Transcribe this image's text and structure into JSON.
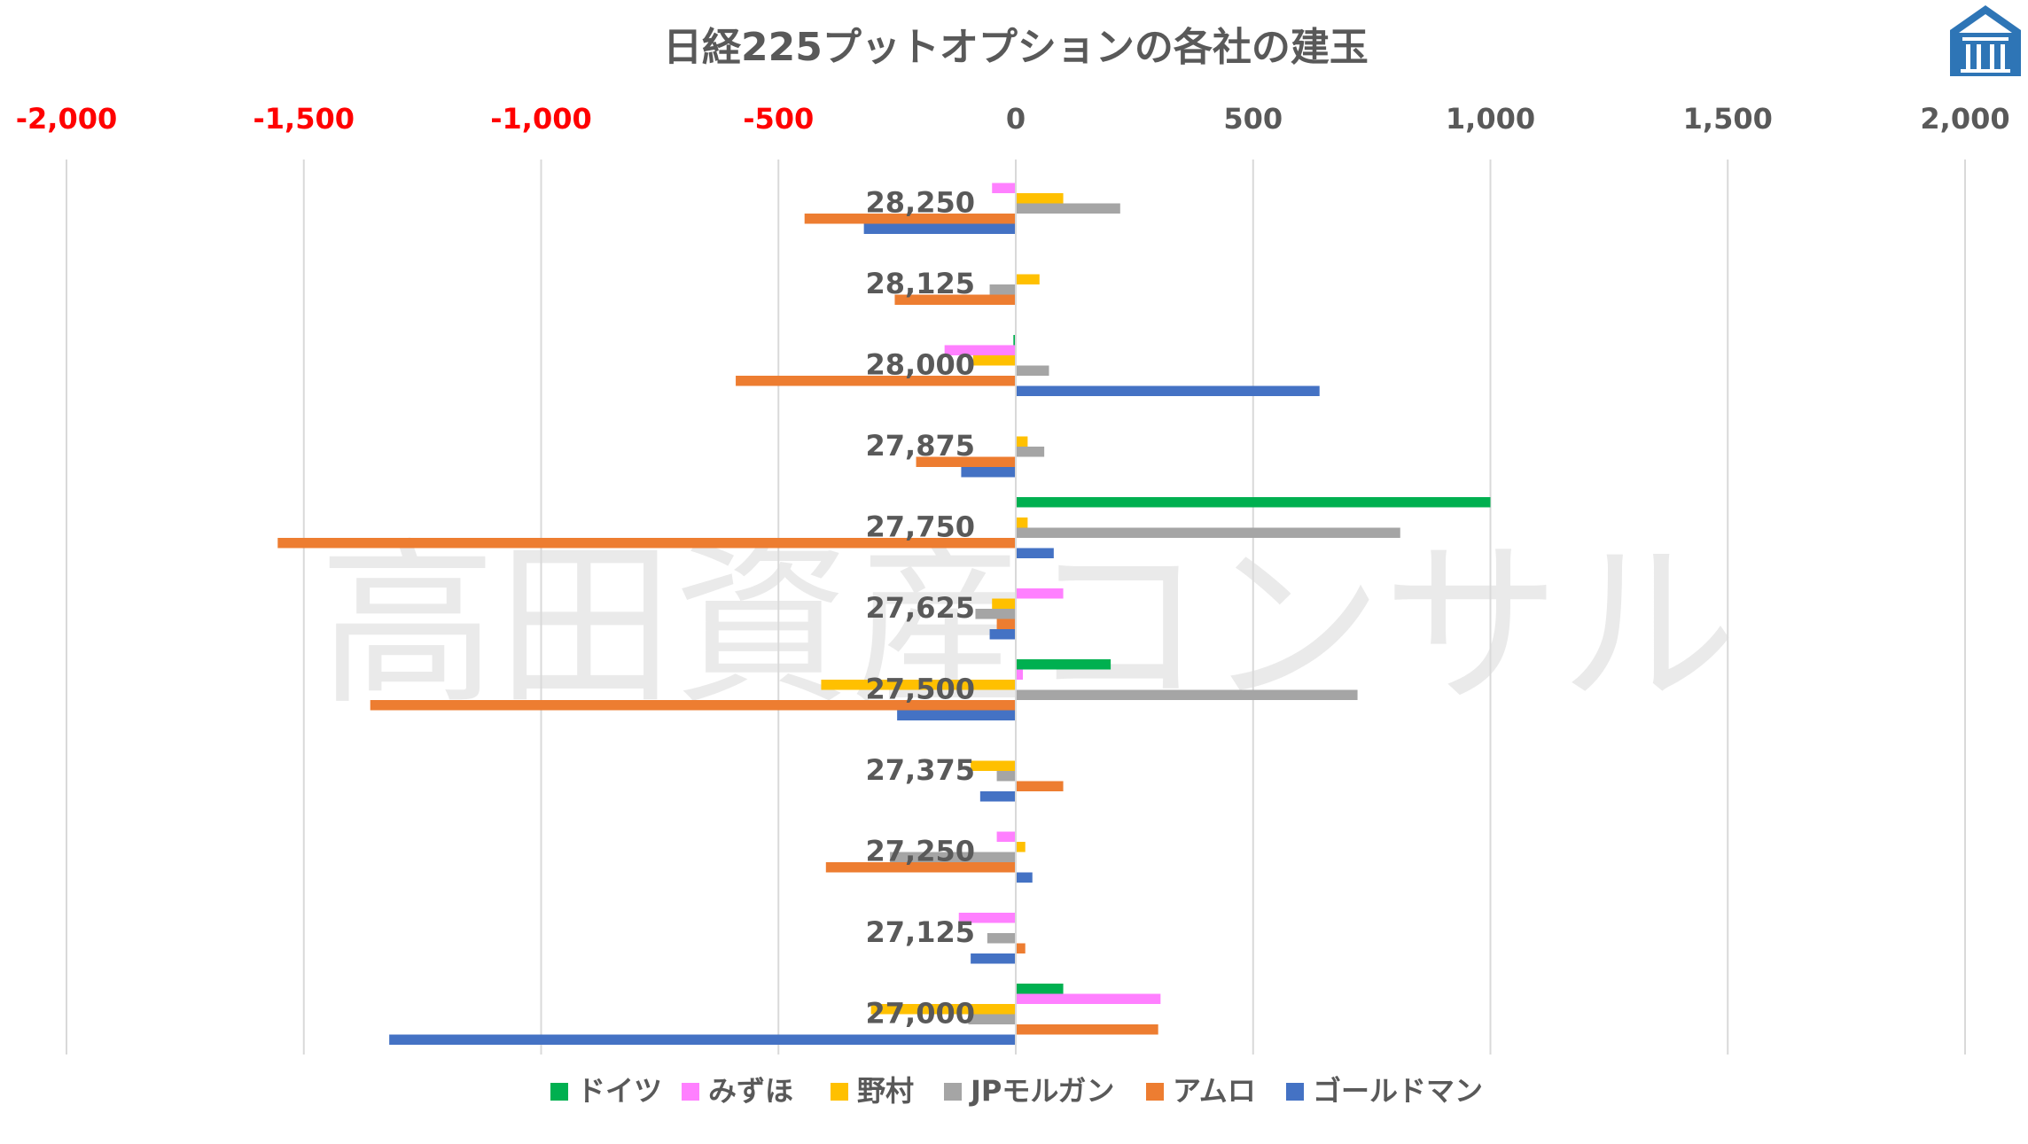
{
  "chart_data": {
    "type": "bar",
    "orientation": "horizontal",
    "title": "日経225プットオプションの各社の建玉",
    "watermark": "高田資産コンサル",
    "xlim": [
      -2000,
      2000
    ],
    "x_ticks": [
      -2000,
      -1500,
      -1000,
      -500,
      0,
      500,
      1000,
      1500,
      2000
    ],
    "x_tick_labels": [
      "-2,000",
      "-1,500",
      "-1,000",
      "-500",
      "0",
      "500",
      "1,000",
      "1,500",
      "2,000"
    ],
    "x_axis_position": "top",
    "negative_tick_color": "#ff0000",
    "positive_tick_color": "#595959",
    "grid": "vertical",
    "legend_position": "bottom",
    "categories": [
      "28,250",
      "28,125",
      "28,000",
      "27,875",
      "27,750",
      "27,625",
      "27,500",
      "27,375",
      "27,250",
      "27,125",
      "27,000"
    ],
    "series": [
      {
        "name": "ドイツ",
        "color": "#00b050",
        "values": [
          0,
          0,
          -5,
          0,
          1000,
          0,
          200,
          0,
          0,
          0,
          100
        ]
      },
      {
        "name": "みずほ",
        "color": "#ff80ff",
        "values": [
          -50,
          0,
          -150,
          0,
          0,
          100,
          15,
          0,
          -40,
          -120,
          305
        ]
      },
      {
        "name": "野村",
        "color": "#ffc000",
        "values": [
          100,
          50,
          -90,
          25,
          25,
          -50,
          -410,
          -95,
          20,
          0,
          -305
        ]
      },
      {
        "name": "JPモルガン",
        "color": "#a5a5a5",
        "values": [
          220,
          -55,
          70,
          60,
          810,
          -85,
          720,
          -40,
          -265,
          -60,
          -100
        ]
      },
      {
        "name": "アムロ",
        "color": "#ed7d31",
        "values": [
          -445,
          -255,
          -590,
          -210,
          -1555,
          -40,
          -1360,
          100,
          -400,
          20,
          300
        ]
      },
      {
        "name": "ゴールドマン",
        "color": "#4472c4",
        "values": [
          -320,
          0,
          640,
          -115,
          80,
          -55,
          -250,
          -75,
          35,
          -95,
          -1320
        ]
      }
    ]
  }
}
